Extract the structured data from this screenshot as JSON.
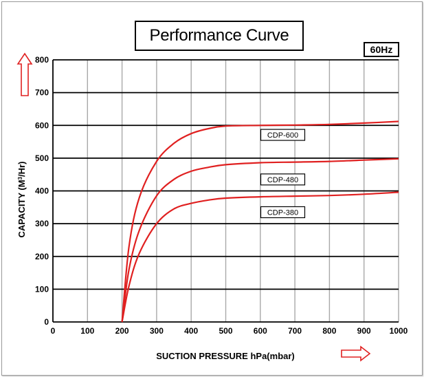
{
  "chart_data": {
    "type": "line",
    "title": "Performance Curve",
    "badge": "60Hz",
    "xlabel": "SUCTION PRESSURE hPa(mbar)",
    "ylabel_main": "CAPACITY (M",
    "ylabel_sup": "3",
    "ylabel_end": "/Hr)",
    "xlim": [
      0,
      1000
    ],
    "ylim": [
      0,
      800
    ],
    "xticks": [
      "0",
      "100",
      "200",
      "300",
      "400",
      "500",
      "600",
      "700",
      "800",
      "900",
      "1000"
    ],
    "yticks": [
      "0",
      "100",
      "200",
      "300",
      "400",
      "500",
      "600",
      "700",
      "800"
    ],
    "grid": true,
    "line_color": "#e02020",
    "series": [
      {
        "name": "CDP-600",
        "x": [
          200,
          220,
          250,
          300,
          350,
          400,
          450,
          500,
          600,
          700,
          800,
          900,
          1000
        ],
        "y": [
          0,
          230,
          380,
          490,
          545,
          575,
          590,
          598,
          600,
          601,
          603,
          607,
          612
        ]
      },
      {
        "name": "CDP-480",
        "x": [
          200,
          220,
          250,
          300,
          350,
          400,
          450,
          500,
          600,
          700,
          800,
          900,
          1000
        ],
        "y": [
          0,
          160,
          280,
          385,
          435,
          460,
          472,
          480,
          486,
          488,
          490,
          494,
          498
        ]
      },
      {
        "name": "CDP-380",
        "x": [
          200,
          220,
          250,
          300,
          350,
          400,
          450,
          500,
          600,
          700,
          800,
          900,
          1000
        ],
        "y": [
          0,
          110,
          210,
          300,
          345,
          362,
          372,
          378,
          382,
          384,
          386,
          390,
          396
        ]
      }
    ]
  }
}
